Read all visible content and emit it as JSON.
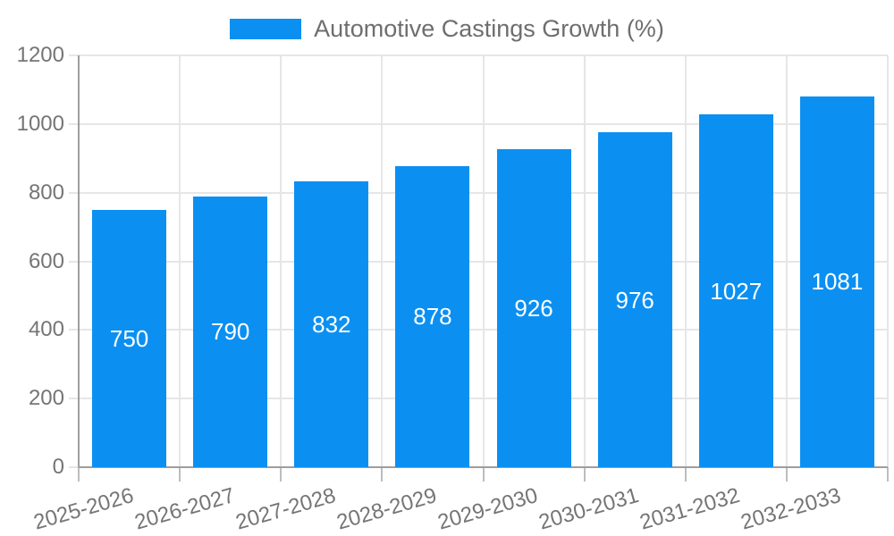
{
  "chart_data": {
    "type": "bar",
    "title": "",
    "legend": "Automotive Castings Growth (%)",
    "legend_position": "top",
    "categories": [
      "2025-2026",
      "2026-2027",
      "2027-2028",
      "2028-2029",
      "2029-2030",
      "2030-2031",
      "2031-2032",
      "2032-2033"
    ],
    "values": [
      750,
      790,
      832,
      878,
      926,
      976,
      1027,
      1081
    ],
    "xlabel": "",
    "ylabel": "",
    "ylim": [
      0,
      1200
    ],
    "yticks": [
      0,
      200,
      400,
      600,
      800,
      1000,
      1200
    ],
    "grid": true,
    "colors": {
      "bar": "#0b90f2",
      "value_label": "#ffffff",
      "axis_text": "#757575",
      "gridline": "#e6e6e6",
      "axis_line": "#9e9e9e",
      "tick_stub": "#bdbdbd"
    }
  }
}
